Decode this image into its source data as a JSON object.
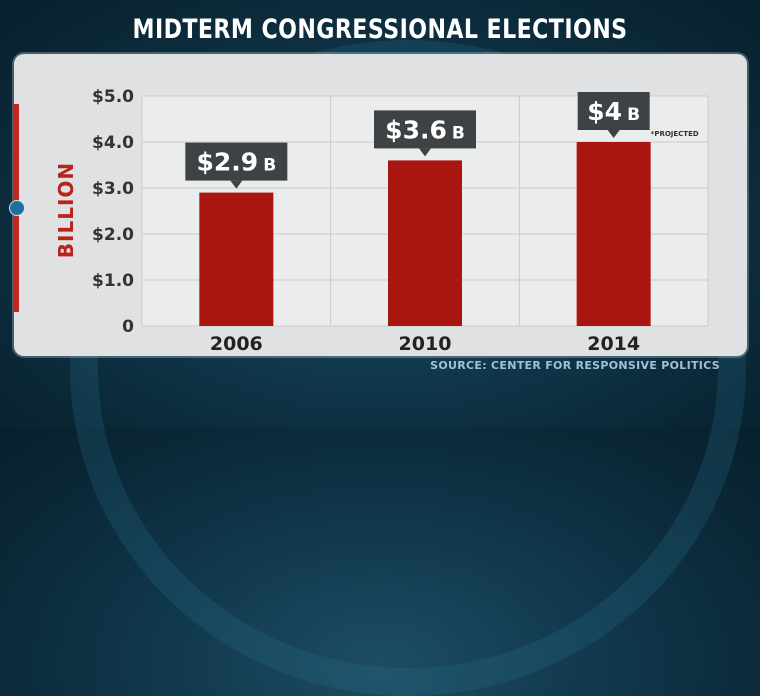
{
  "title": "MIDTERM CONGRESSIONAL ELECTIONS",
  "source": "SOURCE: CENTER FOR RESPONSIVE POLITICS",
  "colors": {
    "bar": "#a8160f",
    "callout": "#3f4244",
    "accent": "#c0281e"
  },
  "chart_data": {
    "type": "bar",
    "title": "MIDTERM CONGRESSIONAL ELECTIONS",
    "ylabel": "BILLION",
    "xlabel": "",
    "categories": [
      "2006",
      "2010",
      "2014"
    ],
    "values": [
      2.9,
      3.6,
      4.0
    ],
    "ylim": [
      0,
      5
    ],
    "y_ticks": [
      "0",
      "$1.0",
      "$2.0",
      "$3.0",
      "$4.0",
      "$5.0"
    ],
    "data_labels": [
      {
        "value": "$2.9",
        "unit": "B"
      },
      {
        "value": "$3.6",
        "unit": "B"
      },
      {
        "value": "$4",
        "unit": "B"
      }
    ],
    "annotations": [
      {
        "category": "2014",
        "text": "*PROJECTED"
      }
    ],
    "grid": true,
    "legend": "none"
  }
}
